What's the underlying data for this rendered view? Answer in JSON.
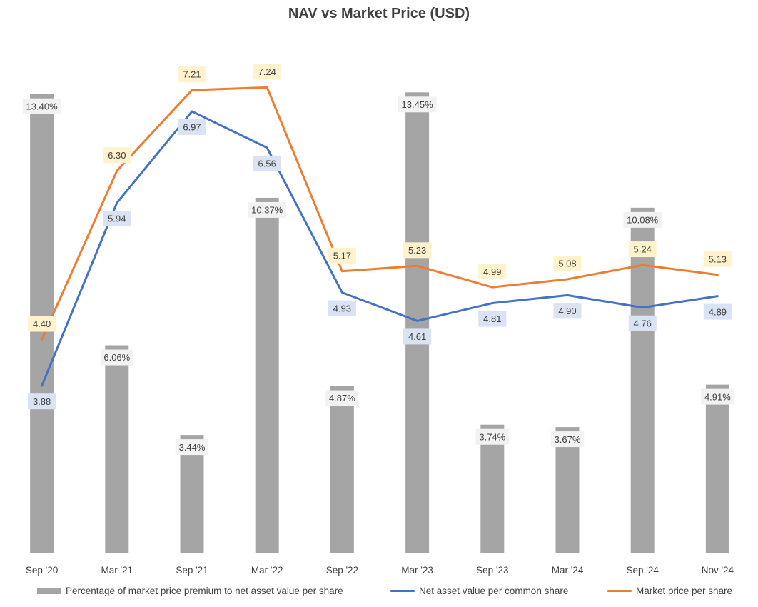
{
  "chart_data": {
    "type": "bar",
    "title": "NAV vs Market Price (USD)",
    "categories": [
      "Sep '20",
      "Mar '21",
      "Sep '21",
      "Mar '22",
      "Sep '22",
      "Mar '23",
      "Sep '23",
      "Mar '24",
      "Sep '24",
      "Nov '24"
    ],
    "series": [
      {
        "name": "Percentage of market price premium to net asset value per share",
        "type": "bar",
        "axis": "secondary",
        "values": [
          13.4,
          6.06,
          3.44,
          10.37,
          4.87,
          13.45,
          3.74,
          3.67,
          10.08,
          4.91
        ],
        "labels": [
          "13.40%",
          "6.06%",
          "3.44%",
          "10.37%",
          "4.87%",
          "13.45%",
          "3.74%",
          "3.67%",
          "10.08%",
          "4.91%"
        ],
        "color": "#a5a5a5"
      },
      {
        "name": "Net asset value per common share",
        "type": "line",
        "axis": "primary",
        "values": [
          3.88,
          5.94,
          6.97,
          6.56,
          4.93,
          4.61,
          4.81,
          4.9,
          4.76,
          4.89
        ],
        "labels": [
          "3.88",
          "5.94",
          "6.97",
          "6.56",
          "4.93",
          "4.61",
          "4.81",
          "4.90",
          "4.76",
          "4.89"
        ],
        "color": "#4472c4",
        "label_bg": "#dae3f3"
      },
      {
        "name": "Market price per share",
        "type": "line",
        "axis": "primary",
        "values": [
          4.4,
          6.3,
          7.21,
          7.24,
          5.17,
          5.23,
          4.99,
          5.08,
          5.24,
          5.13
        ],
        "labels": [
          "4.40",
          "6.30",
          "7.21",
          "7.24",
          "5.17",
          "5.23",
          "4.99",
          "5.08",
          "5.24",
          "5.13"
        ],
        "color": "#ed7d31",
        "label_bg": "#fff2cc"
      }
    ],
    "ylim_primary": [
      2,
      7.5
    ],
    "ylim_secondary": [
      0,
      15
    ],
    "grid": false,
    "legend": "bottom",
    "bar_label_bg": "#f2f2f2"
  }
}
